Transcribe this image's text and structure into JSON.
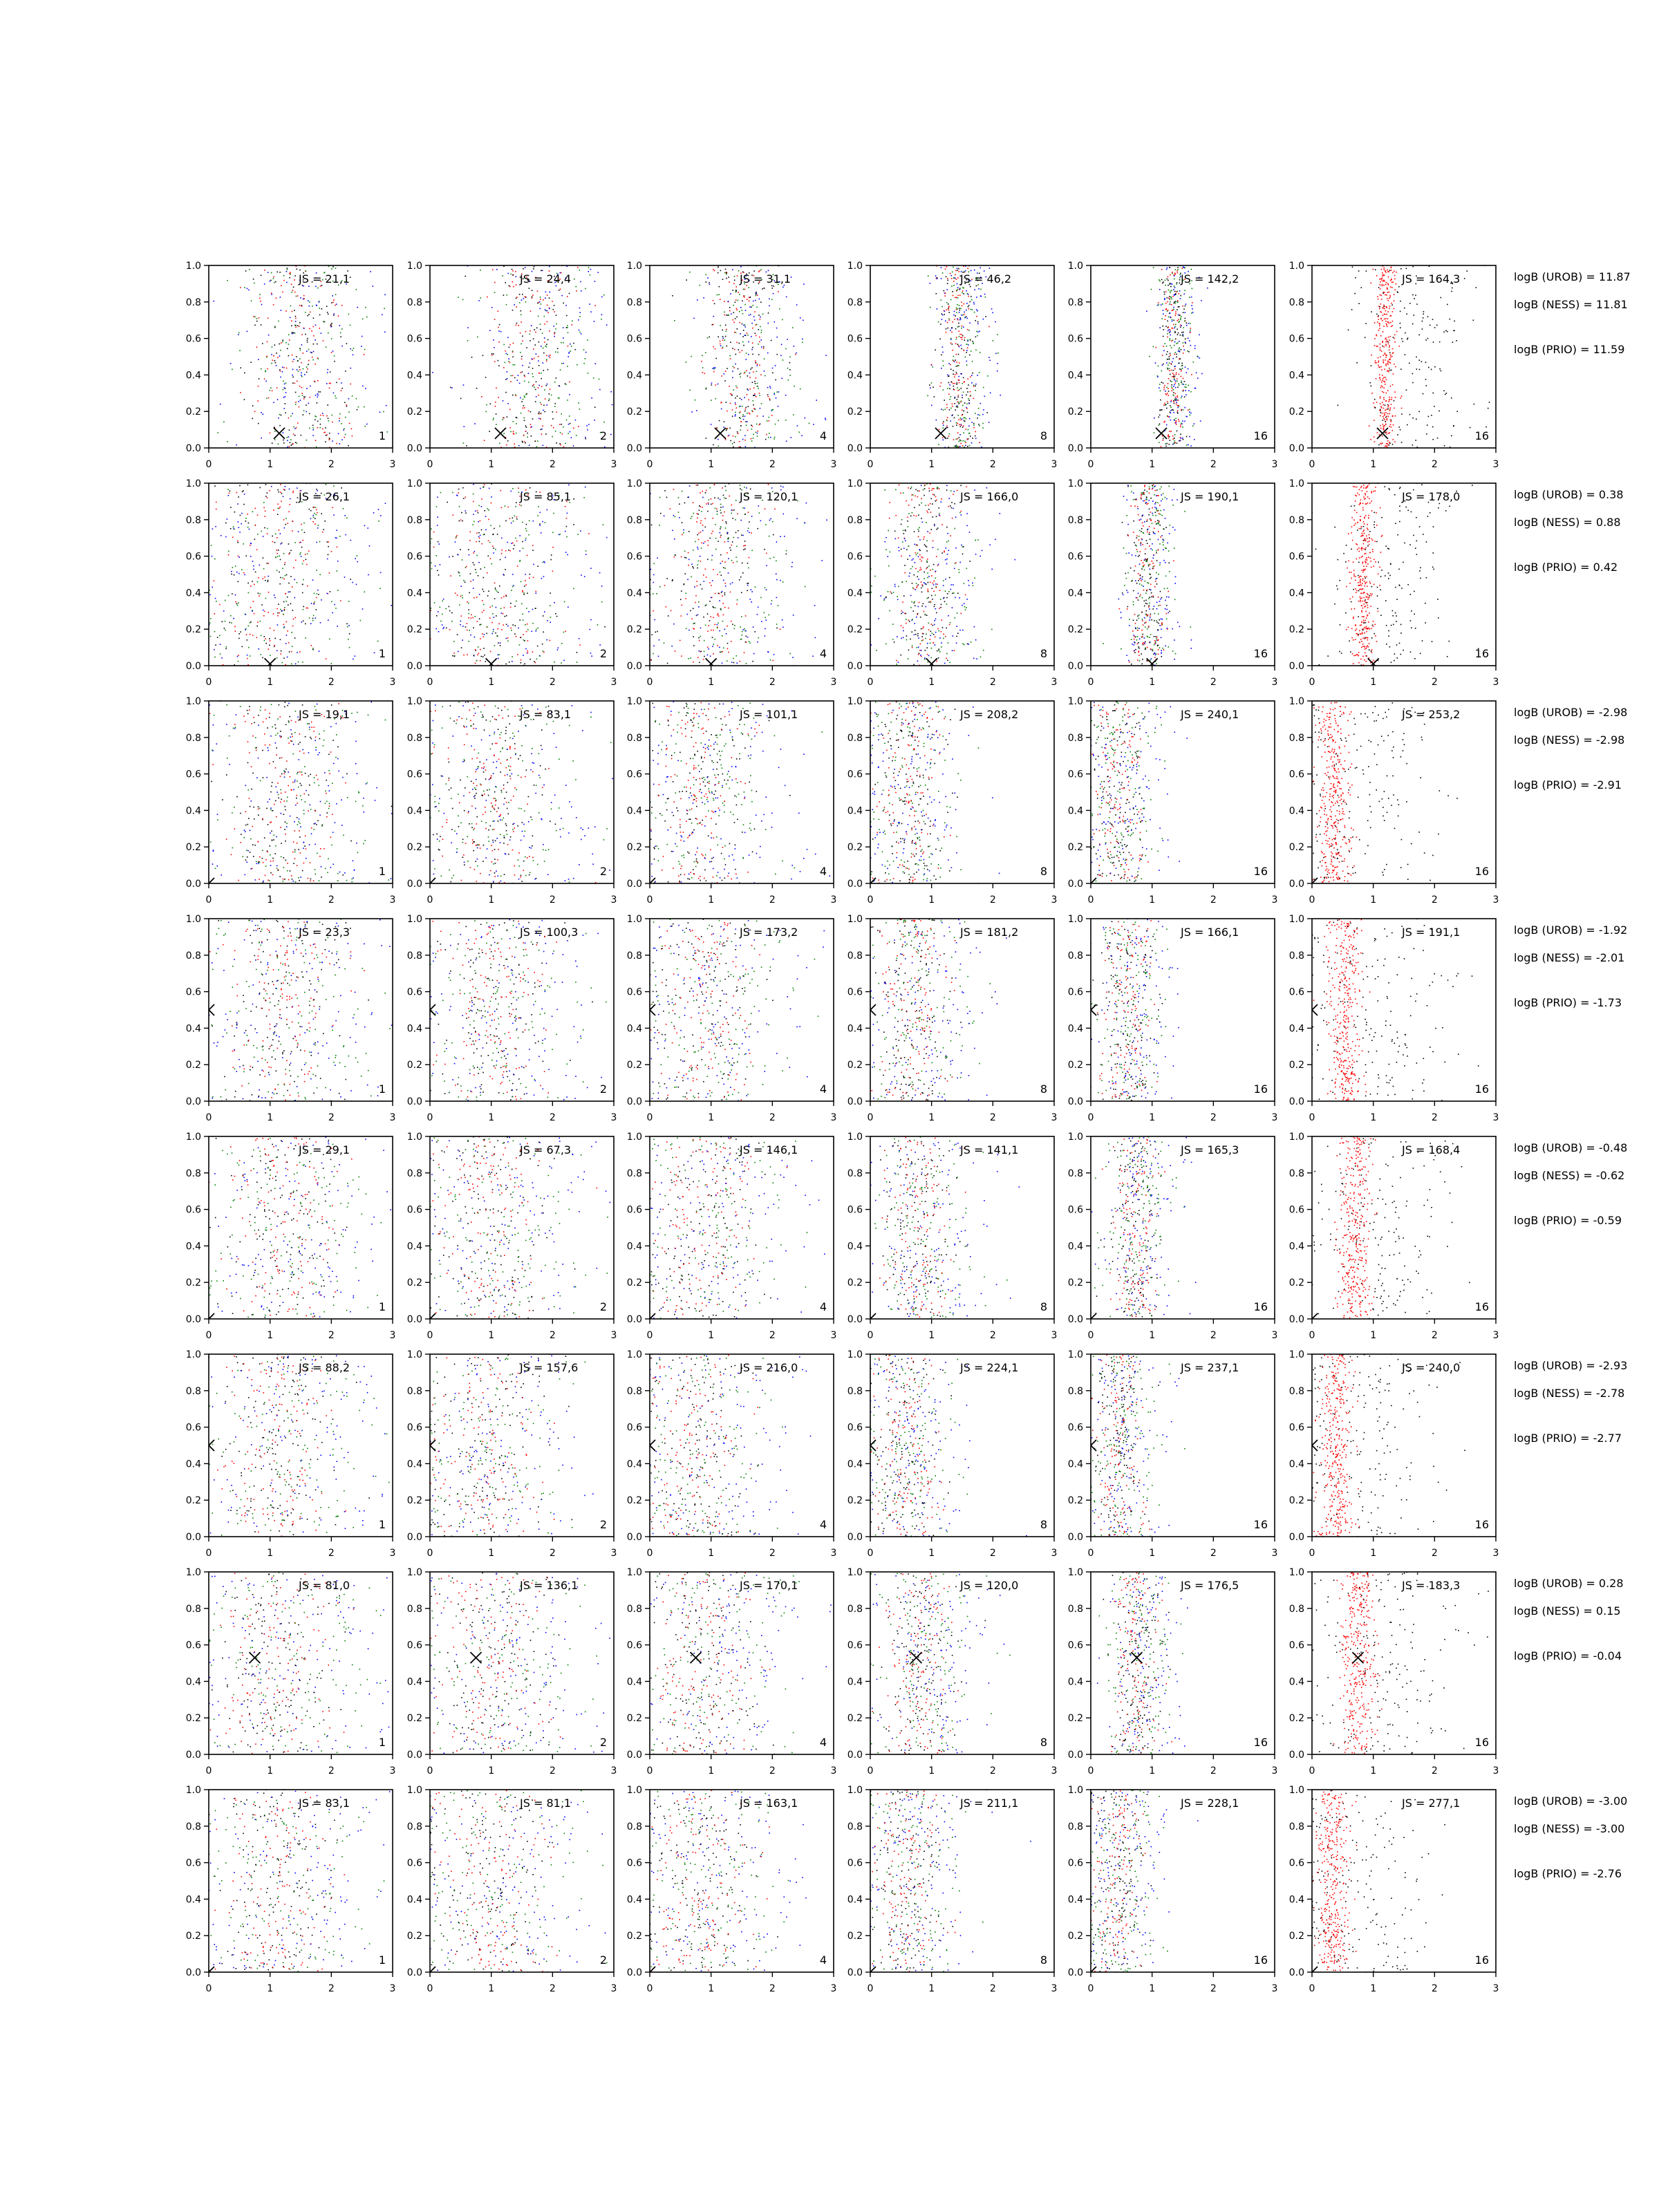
{
  "chart_data": {
    "type": "scatter",
    "grid": false,
    "xlim": [
      0,
      3
    ],
    "ylim": [
      0,
      1
    ],
    "x_ticks": [
      "0",
      "1",
      "2",
      "3"
    ],
    "y_ticks": [
      "0.0",
      "0.2",
      "0.4",
      "0.6",
      "0.8",
      "1.0"
    ],
    "series_colors": [
      "#000000",
      "#0000ff",
      "#008000",
      "#ff0000"
    ],
    "panel_labels": [
      "1",
      "2",
      "4",
      "8",
      "16",
      "16"
    ],
    "marker_color": "#000000",
    "rows": [
      {
        "js": [
          "JS = 21,1",
          "JS = 24,4",
          "JS = 31,1",
          "JS = 46,2",
          "JS = 142,2",
          "JS = 164,3"
        ],
        "logB": [
          "logB (UROB) = 11.87",
          "logB (NESS) = 11.81",
          "logB (PRIO) = 11.59"
        ],
        "marker": [
          1.15,
          0.08
        ],
        "clouds": [
          [
            1.5,
            0.45
          ],
          [
            1.62,
            0.45
          ],
          [
            1.5,
            0.3
          ],
          [
            1.45,
            0.16
          ],
          [
            1.35,
            0.12
          ],
          [
            1.2,
            0.1
          ]
        ]
      },
      {
        "js": [
          "JS = 26,1",
          "JS = 85,1",
          "JS = 120,1",
          "JS = 166,0",
          "JS = 190,1",
          "JS = 178,0"
        ],
        "logB": [
          "logB (UROB) = 0.38",
          "logB (NESS) = 0.88",
          "logB (PRIO) = 0.42"
        ],
        "marker": [
          1.0,
          0.01
        ],
        "clouds": [
          [
            1.1,
            0.5
          ],
          [
            1.1,
            0.55
          ],
          [
            1.0,
            0.45
          ],
          [
            0.9,
            0.3
          ],
          [
            0.9,
            0.16
          ],
          [
            0.85,
            0.12
          ]
        ]
      },
      {
        "js": [
          "JS = 19,1",
          "JS = 83,1",
          "JS = 101,1",
          "JS = 208,2",
          "JS = 240,1",
          "JS = 253,2"
        ],
        "logB": [
          "logB (UROB) = -2.98",
          "logB (NESS) = -2.98",
          "logB (PRIO) = -2.91"
        ],
        "marker": [
          0.0,
          0.0
        ],
        "clouds": [
          [
            1.2,
            0.5
          ],
          [
            1.0,
            0.5
          ],
          [
            0.8,
            0.45
          ],
          [
            0.6,
            0.3
          ],
          [
            0.45,
            0.22
          ],
          [
            0.35,
            0.15
          ]
        ]
      },
      {
        "js": [
          "JS = 23,3",
          "JS = 100,3",
          "JS = 173,2",
          "JS = 181,2",
          "JS = 166,1",
          "JS = 191,1"
        ],
        "logB": [
          "logB (UROB) = -1.92",
          "logB (NESS) = -2.01",
          "logB (PRIO) = -1.73"
        ],
        "marker": [
          0.0,
          0.5
        ],
        "clouds": [
          [
            1.2,
            0.5
          ],
          [
            1.0,
            0.5
          ],
          [
            0.9,
            0.45
          ],
          [
            0.7,
            0.3
          ],
          [
            0.6,
            0.22
          ],
          [
            0.55,
            0.15
          ]
        ]
      },
      {
        "js": [
          "JS = 29,1",
          "JS = 67,3",
          "JS = 146,1",
          "JS = 141,1",
          "JS = 165,3",
          "JS = 168,4"
        ],
        "logB": [
          "logB (UROB) = -0.48",
          "logB (NESS) = -0.62",
          "logB (PRIO) = -0.59"
        ],
        "marker": [
          0.0,
          0.0
        ],
        "clouds": [
          [
            1.2,
            0.5
          ],
          [
            1.0,
            0.5
          ],
          [
            0.9,
            0.45
          ],
          [
            0.8,
            0.3
          ],
          [
            0.7,
            0.2
          ],
          [
            0.7,
            0.15
          ]
        ]
      },
      {
        "js": [
          "JS = 88,2",
          "JS = 157,6",
          "JS = 216,0",
          "JS = 224,1",
          "JS = 237,1",
          "JS = 240,0"
        ],
        "logB": [
          "logB (UROB) = -2.93",
          "logB (NESS) = -2.78",
          "logB (PRIO) = -2.77"
        ],
        "marker": [
          0.0,
          0.5
        ],
        "clouds": [
          [
            1.1,
            0.5
          ],
          [
            0.9,
            0.5
          ],
          [
            0.7,
            0.45
          ],
          [
            0.55,
            0.3
          ],
          [
            0.45,
            0.22
          ],
          [
            0.4,
            0.15
          ]
        ]
      },
      {
        "js": [
          "JS = 81,0",
          "JS = 136,1",
          "JS = 170,1",
          "JS = 120,0",
          "JS = 176,5",
          "JS = 183,3"
        ],
        "logB": [
          "logB (UROB) = 0.28",
          "logB (NESS) = 0.15",
          "logB (PRIO) = -0.04"
        ],
        "marker": [
          0.75,
          0.53
        ],
        "clouds": [
          [
            1.1,
            0.5
          ],
          [
            1.0,
            0.5
          ],
          [
            0.9,
            0.45
          ],
          [
            0.8,
            0.3
          ],
          [
            0.75,
            0.2
          ],
          [
            0.75,
            0.15
          ]
        ]
      },
      {
        "js": [
          "JS = 83,1",
          "JS = 81,1",
          "JS = 163,1",
          "JS = 211,1",
          "JS = 228,1",
          "JS = 277,1"
        ],
        "logB": [
          "logB (UROB) = -3.00",
          "logB (NESS) = -3.00",
          "logB (PRIO) = -2.76"
        ],
        "marker": [
          0.0,
          0.0
        ],
        "clouds": [
          [
            1.1,
            0.5
          ],
          [
            1.0,
            0.5
          ],
          [
            0.8,
            0.45
          ],
          [
            0.6,
            0.3
          ],
          [
            0.45,
            0.22
          ],
          [
            0.35,
            0.15
          ]
        ]
      }
    ]
  }
}
